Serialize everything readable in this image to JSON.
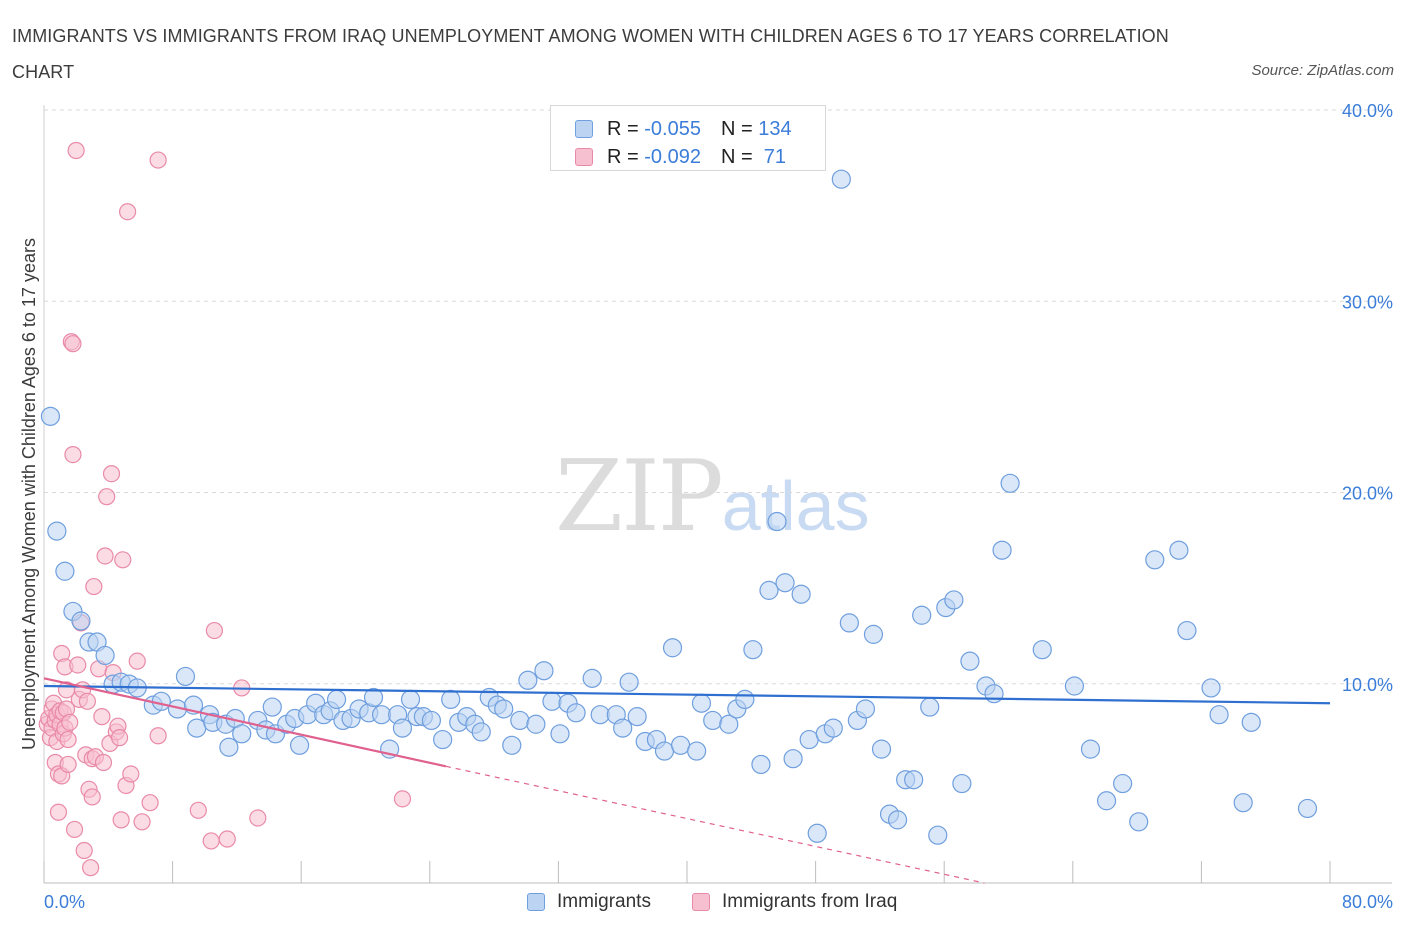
{
  "header": {
    "title": "IMMIGRANTS VS IMMIGRANTS FROM IRAQ UNEMPLOYMENT AMONG WOMEN WITH CHILDREN AGES 6 TO 17 YEARS CORRELATION CHART",
    "source": "Source: ZipAtlas.com"
  },
  "watermark": {
    "zip": "ZIP",
    "atlas": "atlas"
  },
  "legend": {
    "rows": [
      {
        "r_label": "R = ",
        "r_value": "-0.055",
        "n_label": "N = ",
        "n_value": "134"
      },
      {
        "r_label": "R = ",
        "r_value": "-0.092",
        "n_label": "N = ",
        "n_value": " 71"
      }
    ]
  },
  "bottom_legend": [
    "Immigrants",
    "Immigrants from Iraq"
  ],
  "colors": {
    "blue_fill": "#bcd4f2",
    "blue_stroke": "#6f9fde",
    "blue_line": "#2f6fcf",
    "pink_fill": "#f7c0d0",
    "pink_stroke": "#e98aa8",
    "pink_line": "#e0608e",
    "grid": "#d9d9d9",
    "tick": "#3b7dd8"
  },
  "chart_data": {
    "type": "scatter",
    "title": "IMMIGRANTS VS IMMIGRANTS FROM IRAQ UNEMPLOYMENT AMONG WOMEN WITH CHILDREN AGES 6 TO 17 YEARS CORRELATION CHART",
    "xlabel": "",
    "ylabel": "Unemployment Among Women with Children Ages 6 to 17 years",
    "xlim": [
      0,
      80
    ],
    "ylim": [
      0,
      40
    ],
    "x_tick_labels": [
      "0.0%",
      "80.0%"
    ],
    "y_ticks": [
      10,
      20,
      30,
      40
    ],
    "y_tick_labels": [
      "10.0%",
      "20.0%",
      "30.0%",
      "40.0%"
    ],
    "grid": true,
    "legend_position": "top-center",
    "series": [
      {
        "name": "Immigrants",
        "R": -0.055,
        "N": 134,
        "trend": {
          "x": [
            0,
            80
          ],
          "y": [
            10.3,
            9.4
          ]
        },
        "points": [
          [
            0.4,
            24.4
          ],
          [
            0.8,
            18.4
          ],
          [
            1.3,
            16.3
          ],
          [
            1.8,
            14.2
          ],
          [
            2.3,
            13.7
          ],
          [
            2.8,
            12.6
          ],
          [
            3.3,
            12.6
          ],
          [
            3.8,
            11.9
          ],
          [
            4.3,
            10.4
          ],
          [
            4.8,
            10.5
          ],
          [
            5.3,
            10.4
          ],
          [
            5.8,
            10.2
          ],
          [
            6.8,
            9.3
          ],
          [
            7.3,
            9.5
          ],
          [
            8.3,
            9.1
          ],
          [
            8.8,
            10.8
          ],
          [
            9.3,
            9.3
          ],
          [
            9.5,
            8.1
          ],
          [
            10.3,
            8.8
          ],
          [
            10.5,
            8.4
          ],
          [
            11.3,
            8.3
          ],
          [
            11.5,
            7.1
          ],
          [
            11.9,
            8.6
          ],
          [
            12.3,
            7.8
          ],
          [
            13.3,
            8.5
          ],
          [
            13.8,
            8.0
          ],
          [
            14.2,
            9.2
          ],
          [
            14.4,
            7.8
          ],
          [
            15.1,
            8.3
          ],
          [
            15.6,
            8.6
          ],
          [
            15.9,
            7.2
          ],
          [
            16.4,
            8.8
          ],
          [
            16.9,
            9.4
          ],
          [
            17.4,
            8.8
          ],
          [
            17.8,
            9.0
          ],
          [
            18.2,
            9.6
          ],
          [
            18.6,
            8.5
          ],
          [
            19.1,
            8.6
          ],
          [
            19.6,
            9.1
          ],
          [
            20.2,
            8.9
          ],
          [
            20.5,
            9.7
          ],
          [
            21.0,
            8.8
          ],
          [
            21.5,
            7.0
          ],
          [
            22.0,
            8.8
          ],
          [
            22.3,
            8.1
          ],
          [
            22.8,
            9.6
          ],
          [
            23.2,
            8.7
          ],
          [
            23.6,
            8.7
          ],
          [
            24.1,
            8.5
          ],
          [
            24.8,
            7.5
          ],
          [
            25.3,
            9.6
          ],
          [
            25.8,
            8.4
          ],
          [
            26.3,
            8.7
          ],
          [
            26.8,
            8.3
          ],
          [
            27.2,
            7.9
          ],
          [
            27.7,
            9.7
          ],
          [
            28.2,
            9.3
          ],
          [
            28.6,
            9.1
          ],
          [
            29.1,
            7.2
          ],
          [
            29.6,
            8.5
          ],
          [
            30.1,
            10.6
          ],
          [
            30.6,
            8.3
          ],
          [
            31.1,
            11.1
          ],
          [
            31.6,
            9.5
          ],
          [
            32.1,
            7.8
          ],
          [
            32.6,
            9.4
          ],
          [
            33.1,
            8.9
          ],
          [
            34.1,
            10.7
          ],
          [
            34.6,
            8.8
          ],
          [
            35.6,
            8.8
          ],
          [
            36.0,
            8.1
          ],
          [
            36.4,
            10.5
          ],
          [
            36.9,
            8.7
          ],
          [
            37.4,
            7.4
          ],
          [
            38.1,
            7.5
          ],
          [
            38.6,
            6.9
          ],
          [
            39.1,
            12.3
          ],
          [
            39.6,
            7.2
          ],
          [
            40.6,
            6.9
          ],
          [
            40.9,
            9.4
          ],
          [
            41.6,
            8.5
          ],
          [
            42.6,
            8.3
          ],
          [
            43.1,
            9.1
          ],
          [
            43.6,
            9.6
          ],
          [
            44.1,
            12.2
          ],
          [
            44.6,
            6.2
          ],
          [
            45.1,
            15.3
          ],
          [
            45.6,
            18.9
          ],
          [
            46.1,
            15.7
          ],
          [
            46.6,
            6.5
          ],
          [
            47.1,
            15.1
          ],
          [
            47.6,
            7.5
          ],
          [
            48.1,
            2.6
          ],
          [
            48.6,
            7.8
          ],
          [
            49.1,
            8.1
          ],
          [
            49.6,
            36.8
          ],
          [
            50.1,
            13.6
          ],
          [
            50.6,
            8.5
          ],
          [
            51.1,
            9.1
          ],
          [
            51.6,
            13.0
          ],
          [
            52.1,
            7.0
          ],
          [
            52.6,
            3.6
          ],
          [
            53.1,
            3.3
          ],
          [
            53.6,
            5.4
          ],
          [
            54.1,
            5.4
          ],
          [
            54.6,
            14.0
          ],
          [
            55.1,
            9.2
          ],
          [
            55.6,
            2.5
          ],
          [
            56.1,
            14.4
          ],
          [
            56.6,
            14.8
          ],
          [
            57.1,
            5.2
          ],
          [
            57.6,
            11.6
          ],
          [
            58.6,
            10.3
          ],
          [
            59.1,
            9.9
          ],
          [
            59.6,
            17.4
          ],
          [
            60.1,
            20.9
          ],
          [
            62.1,
            12.2
          ],
          [
            64.1,
            10.3
          ],
          [
            65.1,
            7.0
          ],
          [
            66.1,
            4.3
          ],
          [
            67.1,
            5.2
          ],
          [
            68.1,
            3.2
          ],
          [
            69.1,
            16.9
          ],
          [
            70.6,
            17.4
          ],
          [
            71.1,
            13.2
          ],
          [
            72.6,
            10.2
          ],
          [
            73.1,
            8.8
          ],
          [
            74.6,
            4.2
          ],
          [
            75.1,
            8.4
          ],
          [
            78.6,
            3.9
          ]
        ]
      },
      {
        "name": "Immigrants from Iraq",
        "R": -0.092,
        "N": 71,
        "trend": {
          "x": [
            0,
            25
          ],
          "y": [
            10.7,
            6.1
          ]
        },
        "trend_dashed": {
          "x": [
            25,
            58.5
          ],
          "y": [
            6.1,
            0.0
          ]
        },
        "points": [
          [
            0.2,
            8.3
          ],
          [
            0.3,
            8.6
          ],
          [
            0.4,
            7.6
          ],
          [
            0.5,
            9.1
          ],
          [
            0.5,
            8.1
          ],
          [
            0.6,
            9.4
          ],
          [
            0.7,
            6.3
          ],
          [
            0.7,
            8.5
          ],
          [
            0.8,
            7.4
          ],
          [
            0.8,
            8.8
          ],
          [
            0.9,
            5.7
          ],
          [
            0.9,
            3.7
          ],
          [
            1.0,
            8.3
          ],
          [
            1.0,
            9.0
          ],
          [
            1.1,
            5.6
          ],
          [
            1.1,
            12.0
          ],
          [
            1.2,
            8.9
          ],
          [
            1.2,
            7.8
          ],
          [
            1.3,
            11.3
          ],
          [
            1.3,
            8.1
          ],
          [
            1.4,
            9.1
          ],
          [
            1.4,
            10.1
          ],
          [
            1.5,
            7.5
          ],
          [
            1.5,
            6.2
          ],
          [
            1.6,
            8.4
          ],
          [
            1.7,
            28.3
          ],
          [
            1.8,
            28.2
          ],
          [
            1.8,
            22.4
          ],
          [
            1.9,
            2.8
          ],
          [
            2.0,
            38.3
          ],
          [
            2.1,
            11.4
          ],
          [
            2.2,
            9.6
          ],
          [
            2.3,
            13.6
          ],
          [
            2.4,
            10.1
          ],
          [
            2.5,
            1.7
          ],
          [
            2.6,
            6.7
          ],
          [
            2.7,
            9.5
          ],
          [
            2.8,
            4.9
          ],
          [
            2.9,
            0.8
          ],
          [
            3.0,
            6.5
          ],
          [
            3.0,
            4.5
          ],
          [
            3.1,
            15.5
          ],
          [
            3.2,
            6.6
          ],
          [
            3.4,
            11.2
          ],
          [
            3.6,
            8.7
          ],
          [
            3.7,
            6.3
          ],
          [
            3.8,
            17.1
          ],
          [
            3.9,
            20.2
          ],
          [
            4.1,
            7.3
          ],
          [
            4.2,
            21.4
          ],
          [
            4.3,
            11.0
          ],
          [
            4.5,
            7.9
          ],
          [
            4.6,
            8.2
          ],
          [
            4.7,
            7.6
          ],
          [
            4.8,
            3.3
          ],
          [
            4.9,
            16.9
          ],
          [
            5.1,
            5.1
          ],
          [
            5.2,
            35.1
          ],
          [
            5.4,
            5.7
          ],
          [
            5.8,
            11.6
          ],
          [
            6.1,
            3.2
          ],
          [
            6.6,
            4.2
          ],
          [
            7.1,
            37.8
          ],
          [
            7.1,
            7.7
          ],
          [
            9.6,
            3.8
          ],
          [
            10.4,
            2.2
          ],
          [
            10.6,
            13.2
          ],
          [
            11.4,
            2.3
          ],
          [
            12.3,
            10.2
          ],
          [
            13.3,
            3.4
          ],
          [
            22.3,
            4.4
          ]
        ]
      }
    ]
  }
}
